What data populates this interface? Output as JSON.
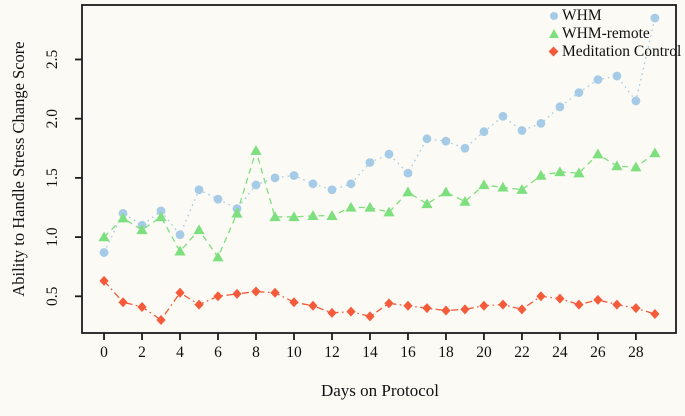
{
  "colors": {
    "background": "#fbfaf4",
    "axis": "#1c1c1c",
    "whm_blue": "#a5cbe6",
    "whm_remote_green": "#7ddf7d",
    "meditation_red": "#f45b3b"
  },
  "chart_data": {
    "type": "line",
    "title": "",
    "xlabel": "Days on Protocol",
    "ylabel": "Ability to Handle Stress Change Score",
    "x": [
      0,
      1,
      2,
      3,
      4,
      5,
      6,
      7,
      8,
      9,
      10,
      11,
      12,
      13,
      14,
      15,
      16,
      17,
      18,
      19,
      20,
      21,
      22,
      23,
      24,
      25,
      26,
      27,
      28,
      29
    ],
    "xticks": [
      "0",
      "2",
      "4",
      "6",
      "8",
      "10",
      "12",
      "14",
      "16",
      "18",
      "20",
      "22",
      "24",
      "26",
      "28"
    ],
    "xtick_values": [
      0,
      2,
      4,
      6,
      8,
      10,
      12,
      14,
      16,
      18,
      20,
      22,
      24,
      26,
      28
    ],
    "yticks": [
      "0.5",
      "1.0",
      "1.5",
      "2.0",
      "2.5"
    ],
    "ytick_values": [
      0.5,
      1.0,
      1.5,
      2.0,
      2.5
    ],
    "xlim": [
      -1.16,
      30.11
    ],
    "ylim": [
      0.19,
      2.96
    ],
    "grid": false,
    "legend_position": "top-right",
    "series": [
      {
        "name": "WHM",
        "marker": "circle",
        "line_style": "dotted",
        "color": "#a5cbe6",
        "values": [
          0.87,
          1.2,
          1.1,
          1.22,
          1.02,
          1.4,
          1.32,
          1.24,
          1.44,
          1.5,
          1.52,
          1.45,
          1.4,
          1.45,
          1.63,
          1.7,
          1.54,
          1.83,
          1.81,
          1.75,
          1.89,
          2.02,
          1.9,
          1.96,
          2.1,
          2.22,
          2.33,
          2.36,
          2.15,
          2.85
        ]
      },
      {
        "name": "WHM-remote",
        "marker": "triangle",
        "line_style": "dashed",
        "color": "#7ddf7d",
        "values": [
          1.0,
          1.16,
          1.06,
          1.17,
          0.88,
          1.06,
          0.83,
          1.2,
          1.73,
          1.17,
          1.17,
          1.18,
          1.18,
          1.25,
          1.25,
          1.21,
          1.38,
          1.28,
          1.38,
          1.3,
          1.44,
          1.42,
          1.4,
          1.52,
          1.55,
          1.54,
          1.7,
          1.6,
          1.59,
          1.71
        ]
      },
      {
        "name": "Meditation Control",
        "marker": "diamond",
        "line_style": "dash-dot",
        "color": "#f45b3b",
        "values": [
          0.63,
          0.45,
          0.41,
          0.3,
          0.53,
          0.43,
          0.5,
          0.52,
          0.54,
          0.53,
          0.45,
          0.42,
          0.36,
          0.37,
          0.33,
          0.44,
          0.42,
          0.4,
          0.38,
          0.39,
          0.42,
          0.43,
          0.39,
          0.5,
          0.48,
          0.43,
          0.47,
          0.43,
          0.4,
          0.35
        ]
      }
    ]
  }
}
